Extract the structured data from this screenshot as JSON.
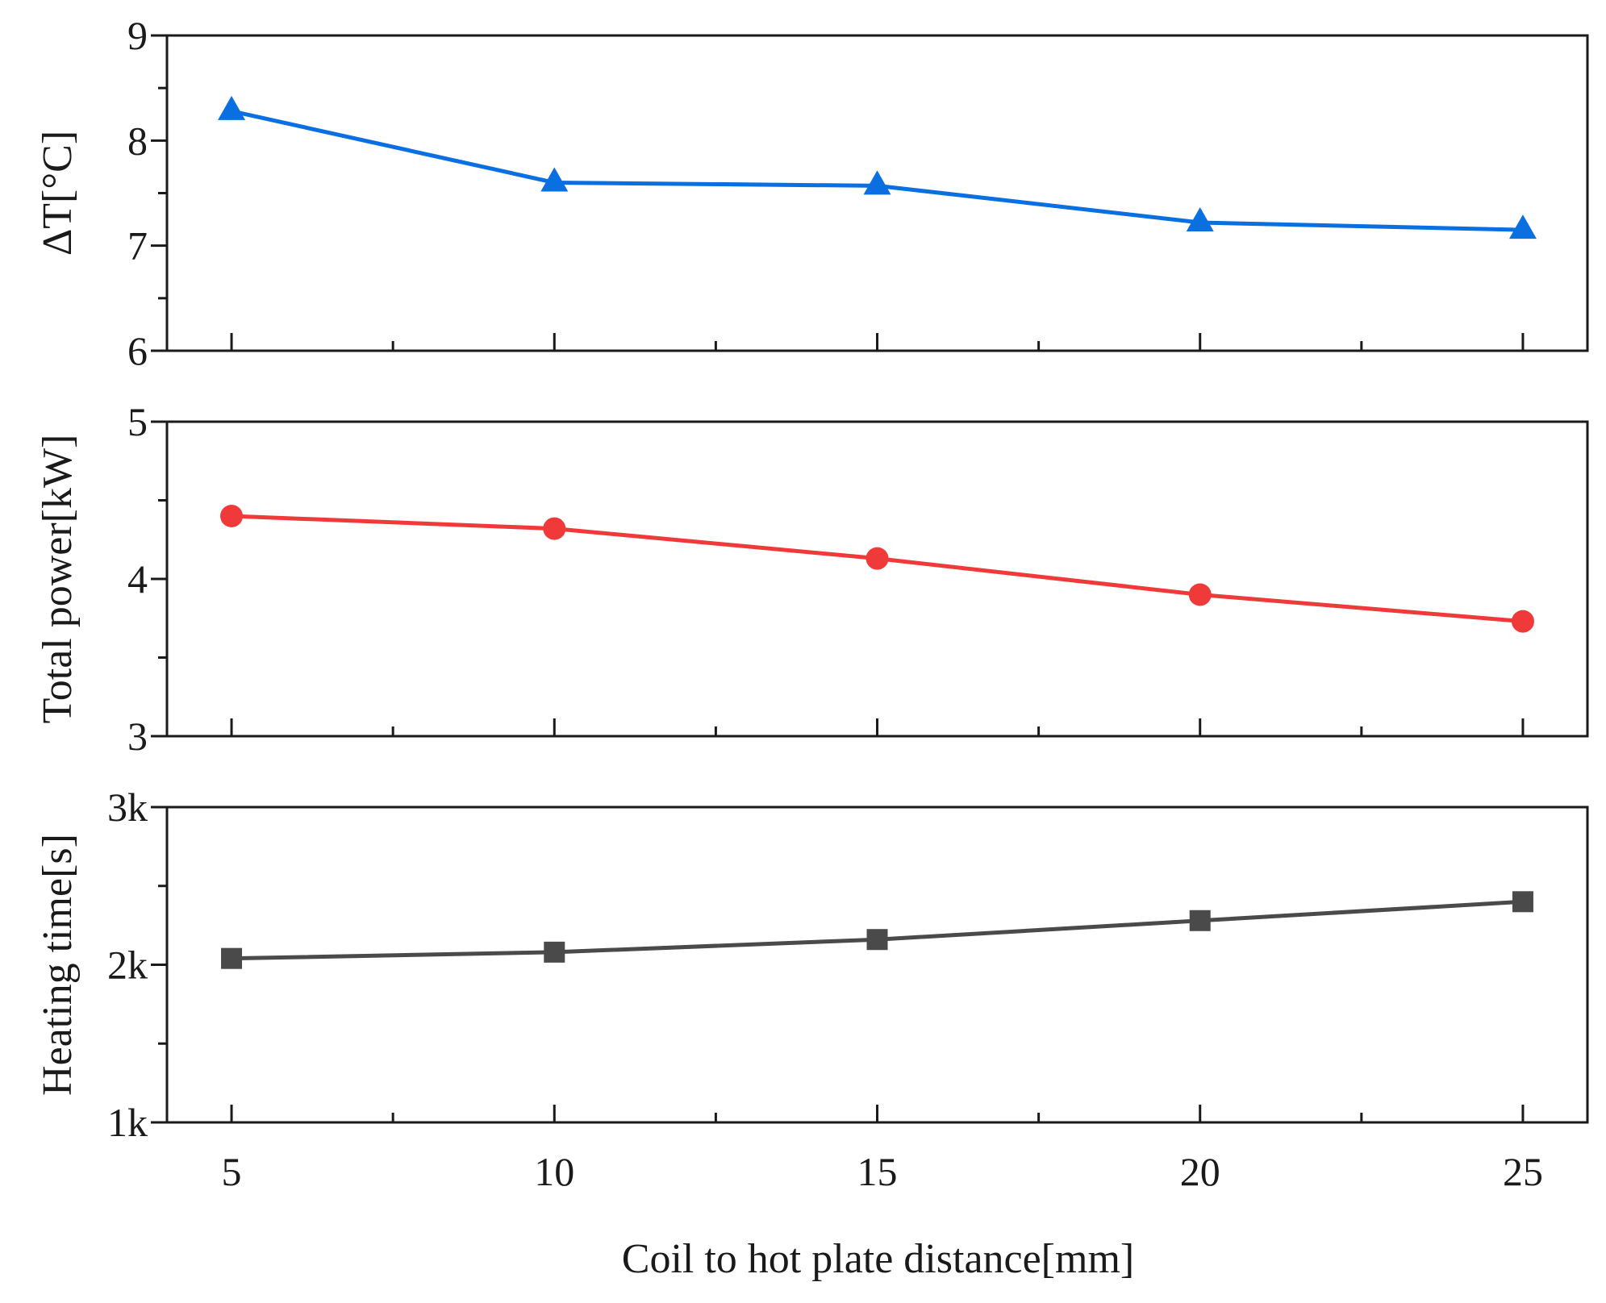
{
  "chart_data": [
    {
      "type": "line",
      "ylabel": "ΔT[°C]",
      "xlabel": "",
      "x": [
        5,
        10,
        15,
        20,
        25
      ],
      "series": [
        {
          "name": "ΔT",
          "values": [
            8.28,
            7.6,
            7.57,
            7.22,
            7.15
          ],
          "color": "#0a6fe0",
          "marker": "triangle"
        }
      ],
      "xlim": [
        4,
        26
      ],
      "ylim": [
        6,
        9
      ],
      "yticks": [
        6,
        7,
        8,
        9
      ],
      "ytick_labels": [
        "6",
        "7",
        "8",
        "9"
      ]
    },
    {
      "type": "line",
      "ylabel": "Total power[kW]",
      "xlabel": "",
      "x": [
        5,
        10,
        15,
        20,
        25
      ],
      "series": [
        {
          "name": "Total power",
          "values": [
            4.4,
            4.32,
            4.13,
            3.9,
            3.73
          ],
          "color": "#f03a3a",
          "marker": "circle"
        }
      ],
      "xlim": [
        4,
        26
      ],
      "ylim": [
        3,
        5
      ],
      "yticks": [
        3,
        4,
        5
      ],
      "ytick_labels": [
        "3",
        "4",
        "5"
      ]
    },
    {
      "type": "line",
      "ylabel": "Heating time[s]",
      "xlabel": "Coil to hot plate distance[mm]",
      "x": [
        5,
        10,
        15,
        20,
        25
      ],
      "series": [
        {
          "name": "Heating time",
          "values": [
            2040,
            2080,
            2160,
            2280,
            2400
          ],
          "color": "#4a4a4a",
          "marker": "square"
        }
      ],
      "xlim": [
        4,
        26
      ],
      "ylim": [
        1000,
        3000
      ],
      "yticks": [
        1000,
        2000,
        3000
      ],
      "ytick_labels": [
        "1k",
        "2k",
        "3k"
      ],
      "xticks": [
        5,
        10,
        15,
        20,
        25
      ],
      "xtick_labels": [
        "5",
        "10",
        "15",
        "20",
        "25"
      ]
    }
  ]
}
